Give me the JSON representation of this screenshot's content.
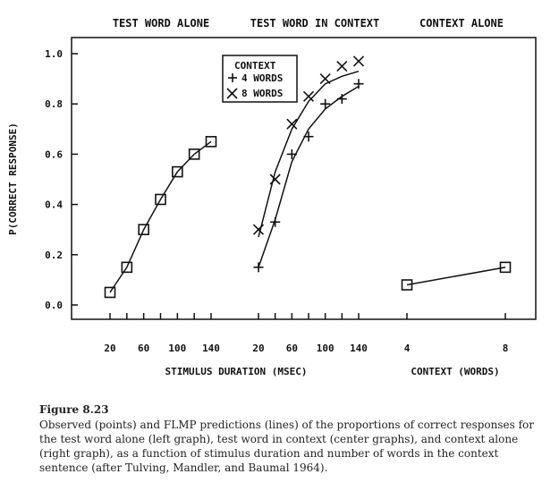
{
  "chart_data": {
    "type": "line",
    "ylabel": "P(CORRECT RESPONSE)",
    "ylim": [
      0,
      1.05
    ],
    "yticks": [
      "0.0",
      "0.2",
      "0.4",
      "0.6",
      "0.8",
      "1.0"
    ],
    "xlabels": {
      "duration": "STIMULUS DURATION (MSEC)",
      "context": "CONTEXT (WORDS)"
    },
    "legend": {
      "title": "CONTEXT",
      "entries": [
        {
          "marker": "+",
          "label": "4 WORDS"
        },
        {
          "marker": "×",
          "label": "8 WORDS"
        }
      ]
    },
    "panels": [
      {
        "title": "TEST WORD ALONE",
        "xticks": [
          "20",
          "60",
          "100",
          "140"
        ],
        "series": [
          {
            "marker": "square",
            "x": [
              20,
              40,
              60,
              80,
              100,
              120,
              140
            ],
            "observed": [
              0.05,
              0.15,
              0.3,
              0.42,
              0.53,
              0.6,
              0.65
            ],
            "predicted": [
              0.05,
              0.15,
              0.3,
              0.42,
              0.53,
              0.6,
              0.65
            ]
          }
        ]
      },
      {
        "title": "TEST WORD IN CONTEXT",
        "xticks": [
          "20",
          "60",
          "100",
          "140"
        ],
        "series": [
          {
            "name": "4 WORDS",
            "marker": "plus",
            "x": [
              20,
              40,
              60,
              80,
              100,
              120,
              140
            ],
            "observed": [
              0.15,
              0.33,
              0.6,
              0.67,
              0.8,
              0.82,
              0.88
            ],
            "predicted": [
              0.15,
              0.34,
              0.57,
              0.7,
              0.78,
              0.83,
              0.87
            ]
          },
          {
            "name": "8 WORDS",
            "marker": "cross",
            "x": [
              20,
              40,
              60,
              80,
              100,
              120,
              140
            ],
            "observed": [
              0.3,
              0.5,
              0.72,
              0.83,
              0.9,
              0.95,
              0.97
            ],
            "predicted": [
              0.27,
              0.53,
              0.7,
              0.81,
              0.88,
              0.91,
              0.93
            ]
          }
        ]
      },
      {
        "title": "CONTEXT ALONE",
        "xticks": [
          "4",
          "8"
        ],
        "series": [
          {
            "marker": "square",
            "x": [
              4,
              8
            ],
            "observed": [
              0.08,
              0.15
            ],
            "predicted": [
              0.08,
              0.15
            ]
          }
        ]
      }
    ]
  },
  "caption": {
    "title": "Figure 8.23",
    "text": "Observed (points) and FLMP predictions (lines) of the proportions of correct responses for the test word alone (left graph), test word in context (center graphs), and context alone (right graph), as a function of stimulus duration and number of words in the context sentence (after Tulving, Mandler, and Baumal 1964)."
  }
}
